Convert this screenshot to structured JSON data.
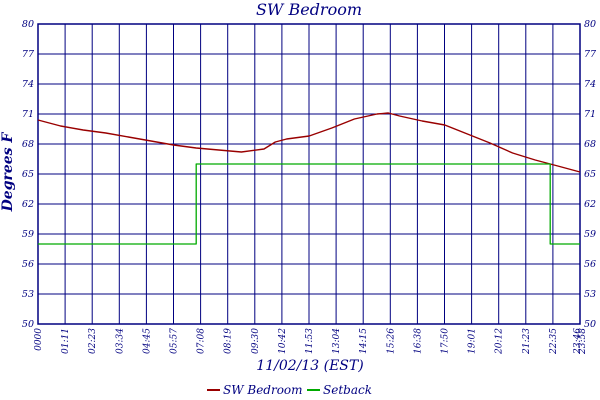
{
  "chart_data": {
    "type": "line",
    "title": "SW Bedroom",
    "xlabel": "11/02/13 (EST)",
    "ylabel": "Degrees F",
    "ylim": [
      50,
      80
    ],
    "xlim": [
      "00:00",
      "23:59"
    ],
    "y_ticks": [
      50,
      53,
      56,
      59,
      62,
      65,
      68,
      71,
      74,
      77,
      80
    ],
    "x_ticks": [
      "0000",
      "01:11",
      "02:23",
      "03:34",
      "04:45",
      "05:57",
      "07:08",
      "08:19",
      "09:30",
      "10:42",
      "11:53",
      "13:04",
      "14:15",
      "15:26",
      "16:38",
      "17:50",
      "19:01",
      "20:12",
      "21:23",
      "22:35",
      "23:46",
      "23:58"
    ],
    "grid": true,
    "legend_position": "bottom",
    "colors": {
      "axis": "#000080",
      "sw_bedroom": "#990000",
      "setback": "#00aa00"
    },
    "series": [
      {
        "name": "SW Bedroom",
        "x": [
          "00:00",
          "01:00",
          "02:00",
          "03:00",
          "04:00",
          "05:00",
          "06:00",
          "07:00",
          "08:00",
          "09:00",
          "10:00",
          "10:30",
          "11:00",
          "12:00",
          "13:00",
          "14:00",
          "15:00",
          "15:30",
          "16:00",
          "17:00",
          "18:00",
          "19:00",
          "20:00",
          "21:00",
          "22:00",
          "23:00",
          "23:59"
        ],
        "values": [
          70.4,
          69.8,
          69.4,
          69.1,
          68.7,
          68.3,
          67.9,
          67.6,
          67.4,
          67.2,
          67.5,
          68.2,
          68.5,
          68.8,
          69.6,
          70.5,
          71.0,
          71.1,
          70.8,
          70.3,
          69.9,
          69.0,
          68.1,
          67.1,
          66.4,
          65.8,
          65.2
        ]
      },
      {
        "name": "Setback",
        "x": [
          "00:00",
          "07:00",
          "07:00",
          "22:40",
          "22:40",
          "23:59"
        ],
        "values": [
          58,
          58,
          66,
          66,
          58,
          58
        ]
      }
    ]
  }
}
